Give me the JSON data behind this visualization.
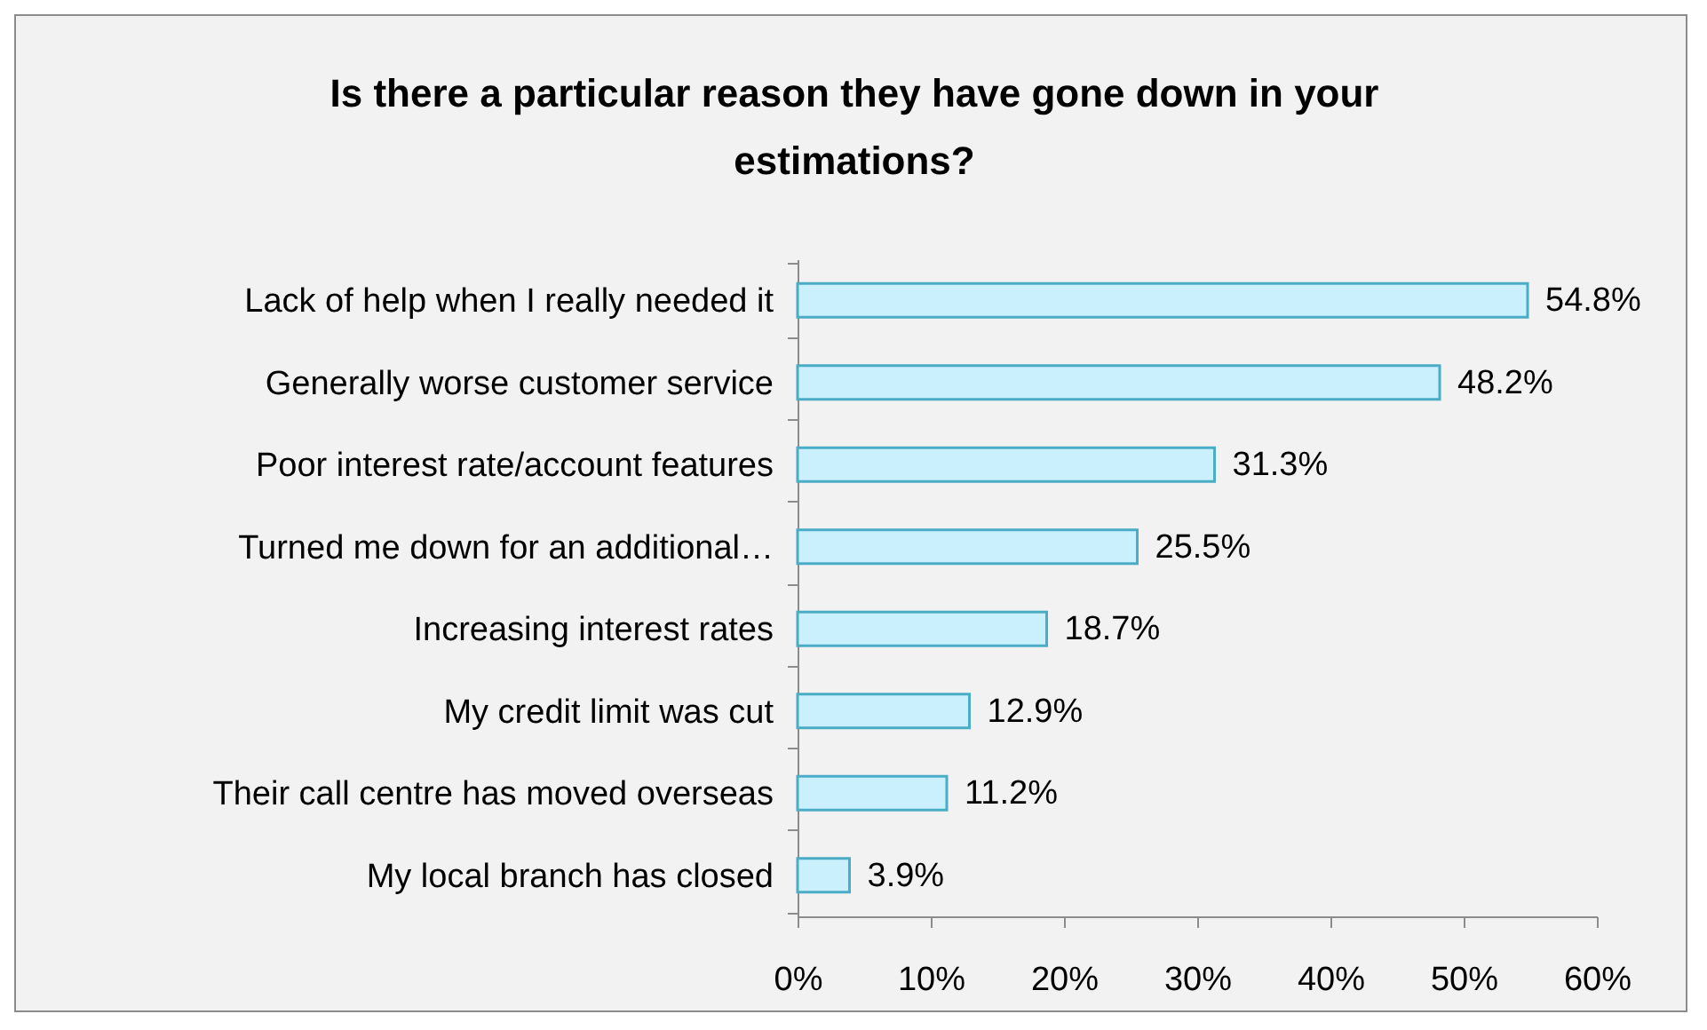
{
  "chart_data": {
    "type": "bar",
    "orientation": "horizontal",
    "title": "Is there a particular reason they have gone down in your estimations?",
    "categories": [
      "Lack of help when I really needed it",
      "Generally worse customer service",
      "Poor interest rate/account features",
      "Turned me down for an additional…",
      "Increasing interest rates",
      "My credit limit was cut",
      "Their call centre has moved overseas",
      "My local branch has closed"
    ],
    "values": [
      54.8,
      48.2,
      31.3,
      25.5,
      18.7,
      12.9,
      11.2,
      3.9
    ],
    "value_labels": [
      "54.8%",
      "48.2%",
      "31.3%",
      "25.5%",
      "18.7%",
      "12.9%",
      "11.2%",
      "3.9%"
    ],
    "color": "#c9f0fc",
    "xlim": [
      0,
      60
    ],
    "xticks": [
      {
        "value": 0,
        "label": "0%"
      },
      {
        "value": 10,
        "label": "10%"
      },
      {
        "value": 20,
        "label": "20%"
      },
      {
        "value": 30,
        "label": "30%"
      },
      {
        "value": 40,
        "label": "40%"
      },
      {
        "value": 50,
        "label": "50%"
      },
      {
        "value": 60,
        "label": "60%"
      }
    ],
    "grid": false
  }
}
